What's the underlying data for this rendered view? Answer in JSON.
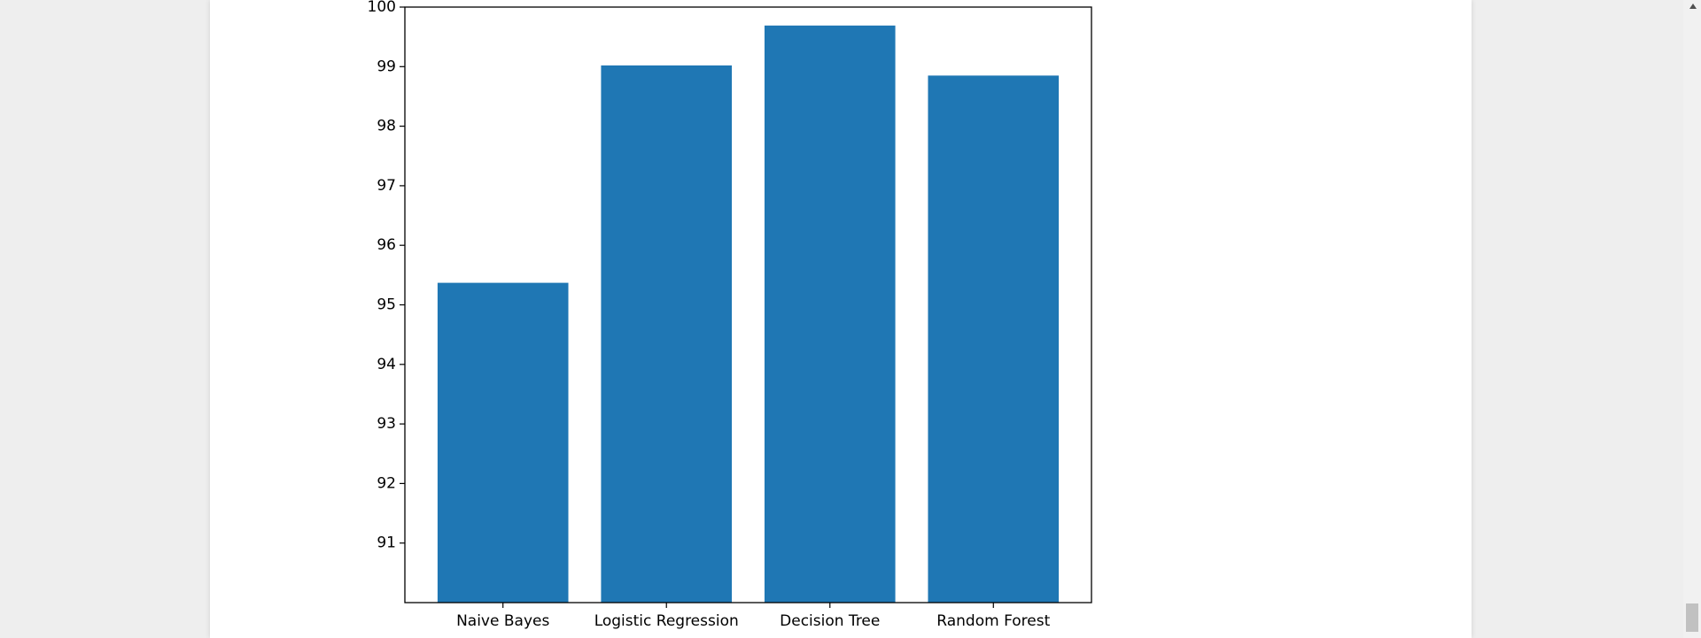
{
  "chart_data": {
    "type": "bar",
    "categories": [
      "Naive Bayes",
      "Logistic Regression",
      "Decision Tree",
      "Random Forest"
    ],
    "values": [
      95.37,
      99.02,
      99.69,
      98.85
    ],
    "title": "",
    "xlabel": "",
    "ylabel": "",
    "ylim": [
      90,
      100
    ],
    "yticks": [
      "91",
      "92",
      "93",
      "94",
      "95",
      "96",
      "97",
      "98",
      "99",
      "100"
    ],
    "bar_color": "#1f77b4",
    "grid": false
  }
}
